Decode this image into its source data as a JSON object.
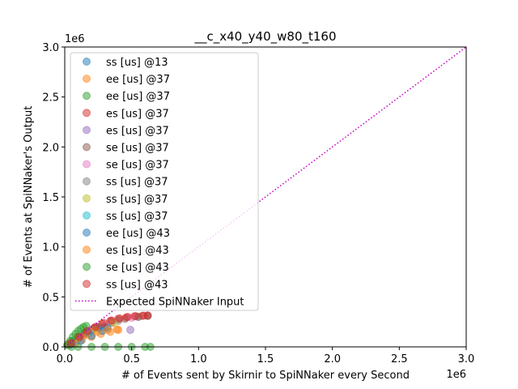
{
  "chart_data": {
    "type": "scatter",
    "title": "__c_x40_y40_w80_t160",
    "xlabel": "# of Events sent by Skirnir to SpiNNaker every Second",
    "ylabel": "# of Events at SpiNNaker's Output",
    "x_multiplier": "1e6",
    "y_multiplier": "1e6",
    "xlim": [
      0,
      3000000
    ],
    "ylim": [
      0,
      3000000
    ],
    "x_ticks": [
      "0.0",
      "0.5",
      "1.0",
      "1.5",
      "2.0",
      "2.5",
      "3.0"
    ],
    "y_ticks": [
      "0.0",
      "0.5",
      "1.0",
      "1.5",
      "2.0",
      "2.5",
      "3.0"
    ],
    "x_tick_values": [
      0,
      500000,
      1000000,
      1500000,
      2000000,
      2500000,
      3000000
    ],
    "y_tick_values": [
      0,
      500000,
      1000000,
      1500000,
      2000000,
      2500000,
      3000000
    ],
    "grid": false,
    "legend_position": "upper-left",
    "reference_line": {
      "name": "Expected SpiNNaker Input",
      "x": [
        0,
        3000000
      ],
      "y": [
        0,
        3000000
      ],
      "color": "#bf00bf",
      "style": "dotted"
    },
    "series": [
      {
        "name": "ss [us] @13",
        "color": "#1f77b4",
        "x": [
          20000,
          60000,
          100000,
          150000,
          200000,
          250000,
          300000
        ],
        "y": [
          20000,
          60000,
          100000,
          140000,
          170000,
          190000,
          200000
        ]
      },
      {
        "name": "ee [us] @37",
        "color": "#ff7f0e",
        "x": [
          30000,
          80000,
          130000,
          200000,
          270000,
          340000,
          400000
        ],
        "y": [
          20000,
          40000,
          70000,
          100000,
          130000,
          150000,
          170000
        ]
      },
      {
        "name": "ee [us] @37",
        "color": "#2ca02c",
        "x": [
          50000,
          100000,
          200000,
          300000,
          400000,
          500000,
          600000,
          640000
        ],
        "y": [
          0,
          0,
          0,
          0,
          0,
          0,
          0,
          0
        ]
      },
      {
        "name": "es [us] @37",
        "color": "#d62728",
        "x": [
          40000,
          100000,
          160000,
          220000,
          280000,
          340000,
          400000,
          460000,
          520000,
          580000
        ],
        "y": [
          40000,
          100000,
          150000,
          190000,
          230000,
          260000,
          280000,
          295000,
          305000,
          310000
        ]
      },
      {
        "name": "es [us] @37",
        "color": "#9467bd",
        "x": [
          490000
        ],
        "y": [
          170000
        ]
      },
      {
        "name": "se [us] @37",
        "color": "#8c564b",
        "x": [
          60000,
          150000,
          250000,
          350000,
          450000,
          550000,
          620000
        ],
        "y": [
          50000,
          130000,
          200000,
          250000,
          280000,
          300000,
          310000
        ]
      },
      {
        "name": "se [us] @37",
        "color": "#e377c2",
        "x": [
          80000,
          200000,
          350000,
          500000
        ],
        "y": [
          60000,
          160000,
          240000,
          290000
        ]
      },
      {
        "name": "ss [us] @37",
        "color": "#7f7f7f",
        "x": [
          100000,
          250000,
          400000,
          550000,
          620000
        ],
        "y": [
          80000,
          190000,
          260000,
          300000,
          310000
        ]
      },
      {
        "name": "ss [us] @37",
        "color": "#bcbd22",
        "x": [
          90000,
          220000,
          360000
        ],
        "y": [
          70000,
          170000,
          240000
        ]
      },
      {
        "name": "ss [us] @37",
        "color": "#17becf",
        "x": [
          70000,
          180000
        ],
        "y": [
          60000,
          140000
        ]
      },
      {
        "name": "ee [us] @43",
        "color": "#1f77b4",
        "x": [
          40000,
          120000,
          200000,
          280000,
          320000
        ],
        "y": [
          20000,
          60000,
          110000,
          160000,
          190000
        ]
      },
      {
        "name": "es [us] @43",
        "color": "#ff7f0e",
        "x": [
          30000,
          90000,
          160000,
          240000,
          320000,
          390000
        ],
        "y": [
          30000,
          80000,
          120000,
          150000,
          170000,
          175000
        ]
      },
      {
        "name": "se [us] @43",
        "color": "#2ca02c",
        "x": [
          20000,
          40000,
          60000,
          80000,
          100000,
          120000,
          140000,
          160000
        ],
        "y": [
          20000,
          60000,
          100000,
          130000,
          160000,
          180000,
          200000,
          210000
        ]
      },
      {
        "name": "ss [us] @43",
        "color": "#d62728",
        "x": [
          50000,
          110000,
          170000,
          230000,
          290000,
          350000,
          410000,
          470000,
          530000,
          590000,
          620000
        ],
        "y": [
          40000,
          100000,
          160000,
          200000,
          240000,
          265000,
          285000,
          300000,
          308000,
          312000,
          315000
        ]
      }
    ]
  }
}
